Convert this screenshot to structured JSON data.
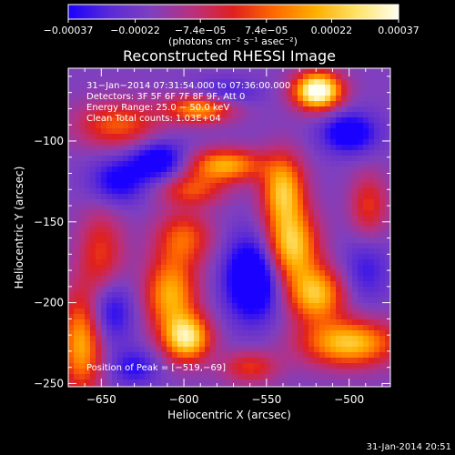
{
  "colors": {
    "background": "#000000",
    "text": "#ffffff",
    "colormap": [
      "#1a00ff",
      "#5a2ad6",
      "#7f3fbf",
      "#b83080",
      "#e0201f",
      "#ff6a00",
      "#ffb000",
      "#ffe36a",
      "#fffff0"
    ]
  },
  "chart_data": {
    "type": "heatmap",
    "title": "Reconstructed RHESSI Image",
    "xlabel": "Heliocentric X (arcsec)",
    "ylabel": "Heliocentric Y (arcsec)",
    "xlim": [
      -670,
      -475
    ],
    "ylim": [
      -252,
      -55
    ],
    "x_ticks": [
      -650,
      -600,
      -550,
      -500
    ],
    "y_ticks": [
      -100,
      -150,
      -200,
      -250
    ],
    "x_tick_labels": [
      "−650",
      "−600",
      "−550",
      "−500"
    ],
    "y_tick_labels": [
      "−100",
      "−150",
      "−200",
      "−250"
    ],
    "grid": false,
    "colorbar": {
      "placement": "top",
      "range": [
        -0.00037,
        0.00037
      ],
      "tick_values": [
        -0.00037,
        -0.00022,
        -7.4e-05,
        7.4e-05,
        0.00022,
        0.00037
      ],
      "tick_labels": [
        "−0.00037",
        "−0.00022",
        "−7.4e−05",
        "7.4e−05",
        "0.00022",
        "0.00037"
      ],
      "units_label": "(photons cm⁻² s⁻¹ asec⁻²)"
    },
    "annotations": [
      "31−Jan−2014 07:31:54.000 to 07:36:00.000",
      "Detectors: 3F 5F 6F 7F 8F 9F, Att 0",
      "Energy Range: 25.0 − 50.0 keV",
      "Clean     Total counts: 1.03E+04"
    ],
    "peak_label": "Position of Peak = [−519,−69]",
    "peak_position": [
      -519,
      -69
    ],
    "blobs": [
      {
        "x": -519,
        "y": -69,
        "sx": 10,
        "sy": 8,
        "amp": 1.35
      },
      {
        "x": -590,
        "y": -80,
        "sx": 14,
        "sy": 6,
        "amp": 0.75
      },
      {
        "x": -640,
        "y": -90,
        "sx": 18,
        "sy": 10,
        "amp": 0.55
      },
      {
        "x": -575,
        "y": -115,
        "sx": 16,
        "sy": 7,
        "amp": 0.8
      },
      {
        "x": -540,
        "y": -130,
        "sx": 9,
        "sy": 15,
        "amp": 0.85
      },
      {
        "x": -535,
        "y": -165,
        "sx": 11,
        "sy": 16,
        "amp": 0.95
      },
      {
        "x": -520,
        "y": -195,
        "sx": 12,
        "sy": 12,
        "amp": 0.85
      },
      {
        "x": -500,
        "y": -225,
        "sx": 20,
        "sy": 10,
        "amp": 0.9
      },
      {
        "x": -608,
        "y": -195,
        "sx": 11,
        "sy": 16,
        "amp": 0.8
      },
      {
        "x": -598,
        "y": -222,
        "sx": 10,
        "sy": 10,
        "amp": 1.0
      },
      {
        "x": -600,
        "y": -160,
        "sx": 12,
        "sy": 12,
        "amp": 0.55
      },
      {
        "x": -650,
        "y": -170,
        "sx": 10,
        "sy": 20,
        "amp": 0.45
      },
      {
        "x": -662,
        "y": -225,
        "sx": 9,
        "sy": 22,
        "amp": 0.8
      },
      {
        "x": -595,
        "y": -130,
        "sx": 14,
        "sy": 7,
        "amp": 0.5
      },
      {
        "x": -560,
        "y": -240,
        "sx": 12,
        "sy": 7,
        "amp": 0.45
      },
      {
        "x": -488,
        "y": -140,
        "sx": 8,
        "sy": 14,
        "amp": 0.45
      },
      {
        "x": -558,
        "y": -185,
        "sx": 12,
        "sy": 18,
        "amp": -0.75
      },
      {
        "x": -615,
        "y": -112,
        "sx": 12,
        "sy": 9,
        "amp": -0.55
      },
      {
        "x": -640,
        "y": -125,
        "sx": 12,
        "sy": 10,
        "amp": -0.45
      },
      {
        "x": -645,
        "y": -205,
        "sx": 10,
        "sy": 14,
        "amp": -0.45
      },
      {
        "x": -500,
        "y": -95,
        "sx": 12,
        "sy": 9,
        "amp": -0.55
      },
      {
        "x": -490,
        "y": -180,
        "sx": 10,
        "sy": 14,
        "amp": -0.3
      },
      {
        "x": -575,
        "y": -70,
        "sx": 14,
        "sy": 6,
        "amp": -0.3
      },
      {
        "x": -630,
        "y": -240,
        "sx": 10,
        "sy": 8,
        "amp": -0.35
      }
    ]
  },
  "date_stamp": "31-Jan-2014 20:51"
}
